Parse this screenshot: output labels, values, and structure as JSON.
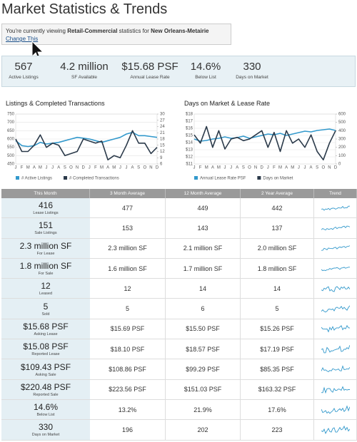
{
  "title": "Market Statistics & Trends",
  "notice": {
    "prefix": "You're currently viewing",
    "property_type": "Retail-Commercial",
    "middle": "statistics for",
    "market": "New Orleans-Metairie",
    "link": "Change This"
  },
  "stats": [
    {
      "value": "567",
      "label": "Active Listings"
    },
    {
      "value": "4.2 million",
      "label": "SF Available"
    },
    {
      "value": "$15.68 PSF",
      "label": "Annual Lease Rate"
    },
    {
      "value": "14.6%",
      "label": "Below List"
    },
    {
      "value": "330",
      "label": "Days on Market"
    }
  ],
  "chart_data": [
    {
      "type": "line",
      "title": "Listings & Completed Transactions",
      "categories": [
        "J",
        "F",
        "M",
        "A",
        "M",
        "J",
        "J",
        "A",
        "S",
        "O",
        "N",
        "D",
        "J",
        "F",
        "M",
        "A",
        "M",
        "J",
        "J",
        "A",
        "S",
        "O",
        "N",
        "D"
      ],
      "series": [
        {
          "name": "# Active Listings",
          "color": "#3399cc",
          "values": [
            590,
            560,
            555,
            560,
            580,
            570,
            575,
            580,
            590,
            600,
            610,
            605,
            600,
            590,
            580,
            590,
            600,
            610,
            630,
            640,
            620,
            620,
            615,
            610
          ]
        },
        {
          "name": "# Completed Transactions",
          "color": "#2b3a4a",
          "axis": "y2",
          "values": [
            18,
            12,
            12,
            15,
            20,
            14,
            16,
            15,
            10,
            11,
            12,
            18,
            17,
            16,
            17,
            8,
            10,
            9,
            15,
            22,
            16,
            16,
            11,
            14
          ]
        }
      ],
      "ylim": [
        450,
        750
      ],
      "yticks": [
        450,
        500,
        550,
        600,
        650,
        700,
        750
      ],
      "y2lim": [
        6,
        30
      ],
      "y2ticks": [
        6,
        9,
        12,
        15,
        18,
        21,
        24,
        27,
        30
      ],
      "grid": true
    },
    {
      "type": "line",
      "title": "Days on Market & Lease Rate",
      "categories": [
        "J",
        "F",
        "M",
        "A",
        "M",
        "J",
        "J",
        "A",
        "S",
        "O",
        "N",
        "D",
        "J",
        "F",
        "M",
        "A",
        "M",
        "J",
        "J",
        "A",
        "S",
        "O",
        "N",
        "D"
      ],
      "series": [
        {
          "name": "Annual Lease Rate PSF",
          "color": "#3399cc",
          "values": [
            14.5,
            14.2,
            14.3,
            14.5,
            14.6,
            14.8,
            14.6,
            14.7,
            14.9,
            14.6,
            14.8,
            15.0,
            15.2,
            15.1,
            15.3,
            15.0,
            15.2,
            15.4,
            15.6,
            15.5,
            15.7,
            15.8,
            15.9,
            15.7
          ]
        },
        {
          "name": "Days on Market",
          "color": "#2b3a4a",
          "axis": "y2",
          "values": [
            350,
            250,
            450,
            200,
            400,
            180,
            300,
            320,
            280,
            300,
            350,
            400,
            200,
            380,
            150,
            400,
            250,
            300,
            200,
            350,
            150,
            50,
            250,
            400
          ]
        }
      ],
      "ylim": [
        11,
        18
      ],
      "yticks": [
        {
          "value": 11,
          "label": "$11"
        },
        {
          "value": 12,
          "label": "$12"
        },
        {
          "value": 13,
          "label": "$13"
        },
        {
          "value": 14,
          "label": "$14"
        },
        {
          "value": 15,
          "label": "$15"
        },
        {
          "value": 16,
          "label": "$16"
        },
        {
          "value": 17,
          "label": "$17"
        },
        {
          "value": 18,
          "label": "$18"
        }
      ],
      "y2lim": [
        0,
        600
      ],
      "y2ticks": [
        0,
        100,
        200,
        300,
        400,
        500,
        600
      ],
      "grid": true
    }
  ],
  "table": {
    "header": [
      "This Month",
      "3 Month Average",
      "12 Month Average",
      "2 Year Average",
      "Trend"
    ],
    "rows": [
      [
        "416",
        "Lease Listings",
        "477",
        "449",
        "442"
      ],
      [
        "151",
        "Sale Listings",
        "153",
        "143",
        "137"
      ],
      [
        "2.3 million SF",
        "For Lease",
        "2.3 million SF",
        "2.1 million SF",
        "2.0 million SF"
      ],
      [
        "1.8 million SF",
        "For Sale",
        "1.6 million SF",
        "1.7 million SF",
        "1.8 million SF"
      ],
      [
        "12",
        "Leased",
        "12",
        "14",
        "14"
      ],
      [
        "5",
        "Sold",
        "5",
        "6",
        "5"
      ],
      [
        "$15.68 PSF",
        "Asking Lease",
        "$15.69 PSF",
        "$15.50 PSF",
        "$15.26 PSF"
      ],
      [
        "$15.08 PSF",
        "Reported Lease",
        "$18.10 PSF",
        "$18.57 PSF",
        "$17.19 PSF"
      ],
      [
        "$109.43 PSF",
        "Asking Sale",
        "$108.86 PSF",
        "$99.29 PSF",
        "$85.35 PSF"
      ],
      [
        "$220.48 PSF",
        "Reported Sale",
        "$223.56 PSF",
        "$151.03 PSF",
        "$163.32 PSF"
      ],
      [
        "14.6%",
        "Below List",
        "13.2%",
        "21.9%",
        "17.6%"
      ],
      [
        "330",
        "Days on Market",
        "196",
        "202",
        "223"
      ]
    ]
  }
}
